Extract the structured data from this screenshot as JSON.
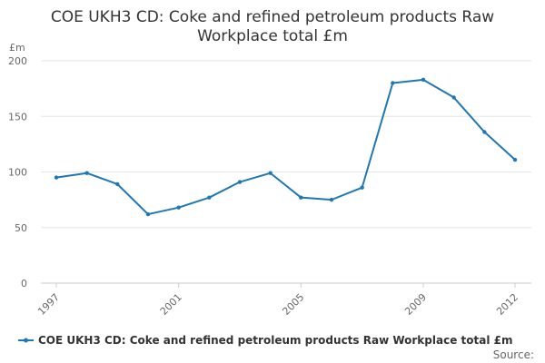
{
  "chart_data": {
    "type": "line",
    "title": "COE UKH3 CD: Coke and refined petroleum products Raw Workplace total £m",
    "title_lines": [
      "COE UKH3 CD: Coke and refined petroleum products Raw",
      "Workplace total £m"
    ],
    "y_unit": "£m",
    "xlabel": "",
    "ylabel": "",
    "x": [
      1997,
      1998,
      1999,
      2000,
      2001,
      2002,
      2003,
      2004,
      2005,
      2006,
      2007,
      2008,
      2009,
      2010,
      2011,
      2012
    ],
    "x_tick_labels": [
      "1997",
      "2001",
      "2005",
      "2009",
      "2012"
    ],
    "ylim": [
      0,
      200
    ],
    "y_ticks": [
      0,
      50,
      100,
      150,
      200
    ],
    "grid": true,
    "legend_position": "bottom",
    "series": [
      {
        "name": "COE UKH3 CD: Coke and refined petroleum products Raw Workplace total £m",
        "color": "#1f77b4",
        "values": [
          95,
          99,
          89,
          62,
          68,
          77,
          91,
          99,
          77,
          75,
          86,
          180,
          183,
          167,
          136,
          111
        ]
      }
    ]
  },
  "footer": {
    "source_label": "Source:"
  }
}
